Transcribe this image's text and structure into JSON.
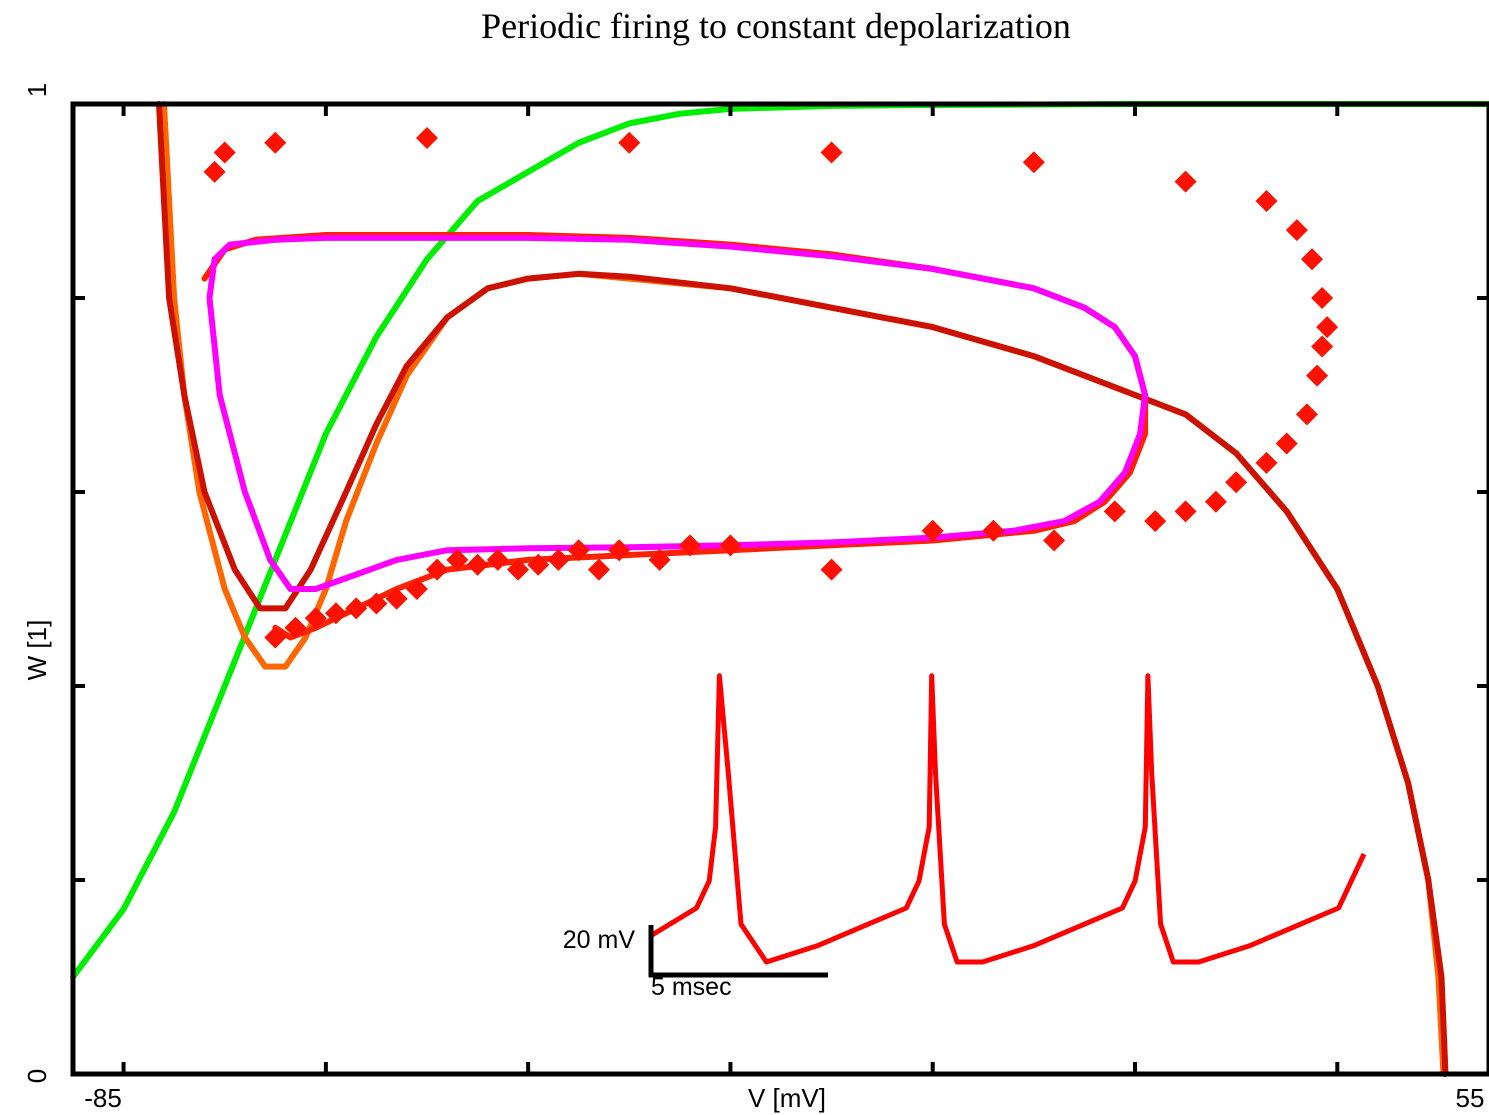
{
  "chart_data": {
    "type": "line",
    "title": "Periodic firing to constant depolarization",
    "xlabel": "V [mV]",
    "ylabel": "W [1]",
    "xlim": [
      -85,
      55
    ],
    "ylim": [
      0,
      1
    ],
    "x_tick_labels": [
      "-85",
      "55"
    ],
    "y_tick_labels": [
      "0",
      "1"
    ],
    "grid": false,
    "legend": "none",
    "series": [
      {
        "color": "#00ee00",
        "style": "line",
        "points": [
          [
            -85,
            0.1
          ],
          [
            -80,
            0.17
          ],
          [
            -75,
            0.27
          ],
          [
            -70,
            0.4
          ],
          [
            -65,
            0.53
          ],
          [
            -60,
            0.66
          ],
          [
            -55,
            0.76
          ],
          [
            -50,
            0.84
          ],
          [
            -45,
            0.9
          ],
          [
            -40,
            0.93
          ],
          [
            -35,
            0.96
          ],
          [
            -30,
            0.98
          ],
          [
            -25,
            0.99
          ],
          [
            -20,
            0.995
          ],
          [
            -10,
            0.998
          ],
          [
            0,
            0.999
          ],
          [
            20,
            1.0
          ],
          [
            40,
            1.0
          ],
          [
            55,
            1.0
          ]
        ]
      },
      {
        "color": "#ff6600",
        "style": "line",
        "points": [
          [
            -76,
            1.0
          ],
          [
            -75.5,
            0.9
          ],
          [
            -75,
            0.8
          ],
          [
            -74,
            0.7
          ],
          [
            -72.5,
            0.6
          ],
          [
            -70,
            0.5
          ],
          [
            -68,
            0.45
          ],
          [
            -66,
            0.42
          ],
          [
            -64,
            0.42
          ],
          [
            -62,
            0.45
          ],
          [
            -60,
            0.5
          ],
          [
            -58,
            0.57
          ],
          [
            -55,
            0.65
          ],
          [
            -52,
            0.72
          ],
          [
            -48,
            0.78
          ],
          [
            -44,
            0.81
          ],
          [
            -40,
            0.82
          ],
          [
            -35,
            0.825
          ],
          [
            -30,
            0.82
          ],
          [
            -25,
            0.815
          ],
          [
            -20,
            0.81
          ],
          [
            -10,
            0.79
          ],
          [
            0,
            0.77
          ],
          [
            10,
            0.74
          ],
          [
            20,
            0.7
          ],
          [
            25,
            0.68
          ],
          [
            30,
            0.64
          ],
          [
            35,
            0.58
          ],
          [
            40,
            0.5
          ],
          [
            44,
            0.4
          ],
          [
            47,
            0.3
          ],
          [
            49,
            0.2
          ],
          [
            50,
            0.1
          ],
          [
            50.5,
            0.0
          ]
        ]
      },
      {
        "color": "#cc1100",
        "style": "line",
        "points": [
          [
            -76.5,
            1.0
          ],
          [
            -76,
            0.9
          ],
          [
            -75.5,
            0.8
          ],
          [
            -74,
            0.7
          ],
          [
            -72,
            0.6
          ],
          [
            -69,
            0.52
          ],
          [
            -66.5,
            0.48
          ],
          [
            -64,
            0.48
          ],
          [
            -61.5,
            0.52
          ],
          [
            -58,
            0.6
          ],
          [
            -55,
            0.67
          ],
          [
            -52,
            0.73
          ],
          [
            -48,
            0.78
          ],
          [
            -44,
            0.81
          ],
          [
            -40,
            0.82
          ],
          [
            -35,
            0.825
          ],
          [
            -30,
            0.822
          ],
          [
            -20,
            0.81
          ],
          [
            -10,
            0.79
          ],
          [
            0,
            0.77
          ],
          [
            10,
            0.74
          ],
          [
            20,
            0.7
          ],
          [
            25,
            0.68
          ],
          [
            30,
            0.64
          ],
          [
            35,
            0.58
          ],
          [
            40,
            0.5
          ],
          [
            44,
            0.4
          ],
          [
            47,
            0.3
          ],
          [
            49,
            0.2
          ],
          [
            50.3,
            0.1
          ],
          [
            50.7,
            0.0
          ]
        ]
      },
      {
        "color": "#ff2200",
        "style": "line",
        "points": [
          [
            -72,
            0.82
          ],
          [
            -70,
            0.85
          ],
          [
            -67,
            0.86
          ],
          [
            -60,
            0.865
          ],
          [
            -50,
            0.865
          ],
          [
            -40,
            0.865
          ],
          [
            -30,
            0.862
          ],
          [
            -20,
            0.855
          ],
          [
            -10,
            0.845
          ],
          [
            0,
            0.83
          ],
          [
            10,
            0.81
          ],
          [
            15,
            0.79
          ],
          [
            18,
            0.77
          ],
          [
            20,
            0.74
          ],
          [
            21,
            0.7
          ],
          [
            21,
            0.66
          ],
          [
            19.5,
            0.62
          ],
          [
            17,
            0.59
          ],
          [
            14,
            0.57
          ],
          [
            10,
            0.56
          ],
          [
            0,
            0.55
          ],
          [
            -10,
            0.545
          ],
          [
            -20,
            0.54
          ],
          [
            -30,
            0.535
          ],
          [
            -40,
            0.53
          ],
          [
            -48,
            0.52
          ],
          [
            -53,
            0.5
          ],
          [
            -57,
            0.48
          ],
          [
            -61,
            0.46
          ],
          [
            -63.5,
            0.45
          ],
          [
            -65,
            0.46
          ]
        ]
      },
      {
        "color": "#ff00ff",
        "style": "line",
        "points": [
          [
            -71.5,
            0.8
          ],
          [
            -71,
            0.84
          ],
          [
            -69.5,
            0.855
          ],
          [
            -65,
            0.86
          ],
          [
            -60,
            0.862
          ],
          [
            -50,
            0.862
          ],
          [
            -40,
            0.862
          ],
          [
            -30,
            0.86
          ],
          [
            -20,
            0.853
          ],
          [
            -10,
            0.843
          ],
          [
            0,
            0.83
          ],
          [
            10,
            0.81
          ],
          [
            15,
            0.79
          ],
          [
            18,
            0.77
          ],
          [
            20,
            0.74
          ],
          [
            21,
            0.7
          ],
          [
            20.5,
            0.66
          ],
          [
            19,
            0.62
          ],
          [
            16.5,
            0.59
          ],
          [
            13,
            0.57
          ],
          [
            8,
            0.56
          ],
          [
            0,
            0.553
          ],
          [
            -10,
            0.548
          ],
          [
            -20,
            0.545
          ],
          [
            -30,
            0.543
          ],
          [
            -40,
            0.542
          ],
          [
            -48,
            0.54
          ],
          [
            -53,
            0.53
          ],
          [
            -57,
            0.515
          ],
          [
            -61,
            0.5
          ],
          [
            -63.5,
            0.5
          ],
          [
            -65.5,
            0.53
          ],
          [
            -68,
            0.6
          ],
          [
            -70.5,
            0.7
          ],
          [
            -71.5,
            0.8
          ]
        ]
      }
    ],
    "markers": {
      "color": "#ff1100",
      "shape": "diamond",
      "points": [
        [
          -65,
          0.45
        ],
        [
          -63,
          0.46
        ],
        [
          -61,
          0.47
        ],
        [
          -59,
          0.475
        ],
        [
          -57,
          0.48
        ],
        [
          -55,
          0.485
        ],
        [
          -53,
          0.49
        ],
        [
          -51,
          0.5
        ],
        [
          -49,
          0.52
        ],
        [
          -47,
          0.53
        ],
        [
          -45,
          0.525
        ],
        [
          -43,
          0.53
        ],
        [
          -41,
          0.52
        ],
        [
          -39,
          0.525
        ],
        [
          -37,
          0.53
        ],
        [
          -35,
          0.54
        ],
        [
          -33,
          0.52
        ],
        [
          -31,
          0.54
        ],
        [
          -27,
          0.53
        ],
        [
          -24,
          0.545
        ],
        [
          -20,
          0.545
        ],
        [
          -10,
          0.52
        ],
        [
          0,
          0.56
        ],
        [
          6,
          0.56
        ],
        [
          12,
          0.55
        ],
        [
          18,
          0.58
        ],
        [
          22,
          0.57
        ],
        [
          25,
          0.58
        ],
        [
          28,
          0.59
        ],
        [
          30,
          0.61
        ],
        [
          33,
          0.63
        ],
        [
          35,
          0.65
        ],
        [
          37,
          0.68
        ],
        [
          38,
          0.72
        ],
        [
          38.5,
          0.75
        ],
        [
          39,
          0.77
        ],
        [
          38.5,
          0.8
        ],
        [
          37.5,
          0.84
        ],
        [
          36,
          0.87
        ],
        [
          33,
          0.9
        ],
        [
          25,
          0.92
        ],
        [
          10,
          0.94
        ],
        [
          -10,
          0.95
        ],
        [
          -30,
          0.96
        ],
        [
          -50,
          0.965
        ],
        [
          -65,
          0.96
        ],
        [
          -70,
          0.95
        ],
        [
          -71,
          0.93
        ]
      ]
    },
    "inset": {
      "type": "line",
      "color": "#ff0000",
      "scale_bar_v_label": "20 mV",
      "scale_bar_t_label": "5 msec",
      "x": [
        0,
        3.5,
        4.5,
        5,
        5.3,
        6,
        7,
        9,
        13,
        17,
        20,
        21,
        21.8,
        22,
        22.3,
        23,
        24,
        26,
        30,
        34,
        37,
        38,
        38.8,
        39,
        39.3,
        40,
        41,
        43,
        47,
        51,
        54,
        55,
        56
      ],
      "y": [
        0,
        5,
        10,
        20,
        48,
        30,
        2,
        -5,
        -2,
        2,
        5,
        10,
        20,
        48,
        30,
        2,
        -5,
        -5,
        -2,
        2,
        5,
        10,
        20,
        48,
        30,
        2,
        -5,
        -5,
        -2,
        2,
        5,
        10,
        15
      ]
    }
  }
}
